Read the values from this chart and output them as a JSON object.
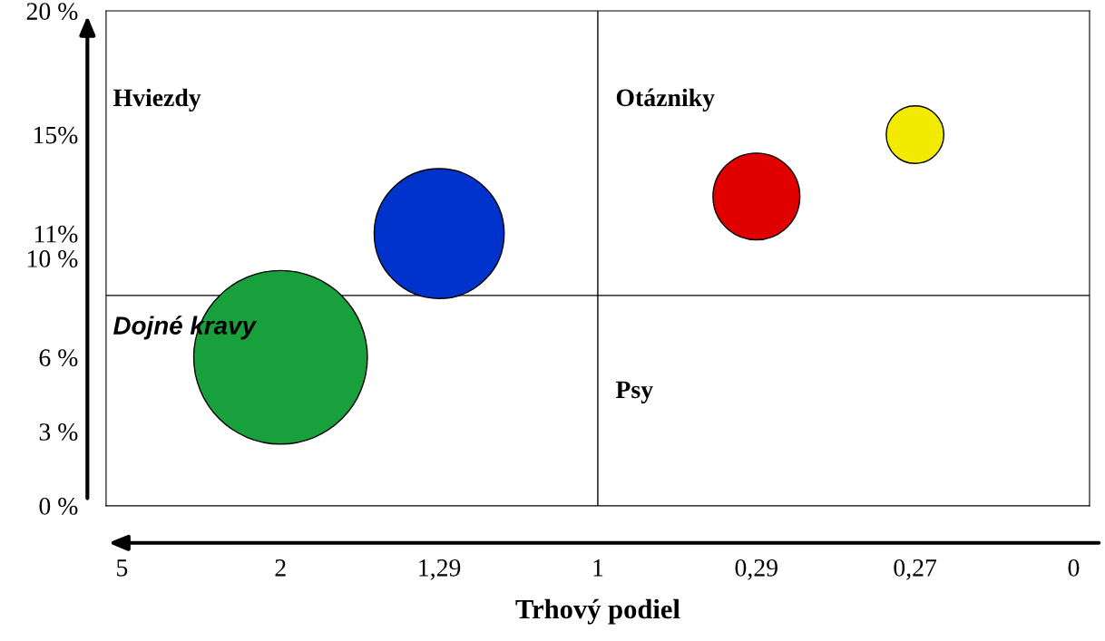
{
  "chart_data": {
    "type": "bubble",
    "xlabel": "Trhový podiel",
    "categories": [
      "5",
      "2",
      "1,29",
      "1",
      "0,29",
      "0,27",
      "0"
    ],
    "values": [
      null,
      6,
      11,
      null,
      12.5,
      15,
      null
    ],
    "sizes": [
      null,
      1,
      0.56,
      null,
      0.25,
      0.11,
      null
    ],
    "colors": [
      null,
      "#17a03c",
      "#0033cc",
      null,
      "#e00000",
      "#f2ea00",
      null
    ],
    "ylim": [
      0,
      20
    ],
    "yticks": [
      {
        "value": 0,
        "label": "0 %"
      },
      {
        "value": 3,
        "label": "3 %"
      },
      {
        "value": 6,
        "label": "6 %"
      },
      {
        "value": 10,
        "label": "10 %"
      },
      {
        "value": 11,
        "label": "11%"
      },
      {
        "value": 15,
        "label": "15%"
      },
      {
        "value": 20,
        "label": "20 %"
      }
    ],
    "ref_lines": [
      {
        "axis": "x",
        "value": "1",
        "color": "#000000"
      },
      {
        "axis": "y",
        "value": 8.5,
        "color": "#000000"
      }
    ],
    "annotations": [
      "Hviezdy",
      "Otázniky",
      "Dojné kravy",
      "Psy"
    ],
    "grid": false,
    "legend": false
  }
}
